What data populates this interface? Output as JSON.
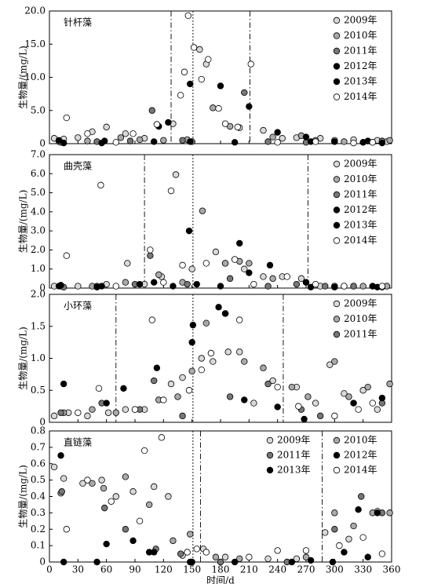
{
  "chart_data": [
    {
      "type": "scatter",
      "title": "针杆藻",
      "ylabel": "生物量/(mg/L)",
      "xlim": [
        0,
        360
      ],
      "xticks": [
        0,
        30,
        60,
        90,
        120,
        150,
        180,
        210,
        240,
        270,
        300,
        330,
        360
      ],
      "ylim": [
        0,
        20
      ],
      "yticks": [
        0,
        {
          "value": 5,
          "label": "5.0"
        },
        {
          "value": 10,
          "label": "10.0"
        },
        {
          "value": 15,
          "label": "15.0"
        },
        {
          "value": 20,
          "label": "20.0"
        }
      ],
      "legend": "upper right",
      "legend_columns": 1,
      "vlines": [
        {
          "x": 128,
          "style": "dash-dot"
        },
        {
          "x": 151,
          "style": "dotted"
        },
        {
          "x": 211,
          "style": "dash-dot"
        }
      ],
      "series": [
        {
          "name": "2009年",
          "color": "#d9d9d9",
          "x": [
            5,
            15,
            30,
            45,
            60,
            80,
            100,
            130,
            158,
            165,
            200,
            225,
            245,
            260,
            285,
            300,
            320,
            345,
            355
          ],
          "values": [
            0.8,
            0.7,
            0.9,
            1.8,
            2.5,
            1.5,
            0.8,
            3.0,
            14.2,
            12.0,
            2.4,
            2.0,
            0.8,
            0.9,
            0.8,
            0.5,
            0.6,
            0.5,
            0.3
          ]
        },
        {
          "name": "2010年",
          "color": "#aaaaaa",
          "x": [
            10,
            40,
            75,
            95,
            120,
            145,
            172,
            190,
            235,
            265,
            280,
            310,
            340,
            358
          ],
          "values": [
            0.3,
            0.4,
            0.9,
            0.6,
            0.5,
            0.6,
            5.4,
            2.6,
            1.0,
            1.2,
            0.5,
            0.3,
            0.2,
            0.5
          ]
        },
        {
          "name": "2011年",
          "color": "#777777",
          "x": [
            12,
            50,
            85,
            108,
            140,
            150,
            205,
            230,
            270,
            300,
            330,
            350
          ],
          "values": [
            0.2,
            0.3,
            0.4,
            5.0,
            0.5,
            0.3,
            7.7,
            0.3,
            0.2,
            0.3,
            0.2,
            0.4
          ]
        },
        {
          "name": "2012年",
          "color": "#000000",
          "x": [
            15,
            58,
            115,
            148,
            180,
            210,
            240,
            275,
            330,
            350
          ],
          "values": [
            0.1,
            0.4,
            2.6,
            0.3,
            8.7,
            5.6,
            1.7,
            0.3,
            0.2,
            0.1
          ]
        },
        {
          "name": "2013年",
          "color": "#000000",
          "x": [
            10,
            55,
            110,
            125,
            148,
            195,
            270,
            300,
            335
          ],
          "values": [
            0.5,
            0.1,
            0.3,
            3.2,
            9.0,
            0.2,
            1.0,
            0.3,
            0.4
          ]
        },
        {
          "name": "2014年",
          "color": "#ffffff",
          "x": [
            18,
            40,
            70,
            88,
            113,
            138,
            142,
            146,
            152,
            160,
            167,
            178,
            185,
            198,
            212,
            240,
            280,
            320,
            340
          ],
          "values": [
            3.9,
            1.5,
            0.2,
            1.5,
            2.9,
            7.3,
            10.8,
            19.3,
            14.5,
            9.7,
            12.7,
            5.3,
            3.0,
            2.5,
            12.0,
            0.2,
            0.3,
            0.1,
            0.2
          ]
        }
      ]
    },
    {
      "type": "scatter",
      "title": "曲壳藻",
      "ylabel": "生物量/(mg/L)",
      "xlim": [
        0,
        360
      ],
      "xticks": [
        0,
        30,
        60,
        90,
        120,
        150,
        180,
        210,
        240,
        270,
        300,
        330,
        360
      ],
      "ylim": [
        0,
        7
      ],
      "yticks": [
        0,
        {
          "value": 1,
          "label": "1.0"
        },
        {
          "value": 2,
          "label": "2.0"
        },
        {
          "value": 3,
          "label": "3.0"
        },
        {
          "value": 4,
          "label": "4.0"
        },
        {
          "value": 5,
          "label": "5.0"
        },
        {
          "value": 6,
          "label": "6.0"
        },
        {
          "value": 7,
          "label": "7.0"
        }
      ],
      "legend": "upper right",
      "legend_columns": 1,
      "vlines": [
        {
          "x": 100,
          "style": "dash-dot"
        },
        {
          "x": 151,
          "style": "dotted"
        },
        {
          "x": 272,
          "style": "dash-dot"
        }
      ],
      "series": [
        {
          "name": "2009年",
          "color": "#d9d9d9",
          "x": [
            5,
            30,
            60,
            82,
            100,
            118,
            133,
            150,
            175,
            185,
            195,
            205,
            225,
            245,
            265,
            285,
            300,
            320,
            340,
            355
          ],
          "values": [
            0.1,
            0.1,
            0.2,
            1.3,
            0.2,
            0.6,
            5.95,
            1.0,
            1.9,
            1.3,
            1.5,
            1.0,
            0.6,
            0.6,
            0.5,
            0.1,
            0.1,
            0.1,
            0.1,
            0.1
          ]
        },
        {
          "name": "2010年",
          "color": "#aaaaaa",
          "x": [
            12,
            45,
            80,
            115,
            140,
            161,
            185,
            200,
            210,
            235,
            270,
            300,
            330,
            355
          ],
          "values": [
            0.1,
            0.1,
            0.3,
            0.7,
            0.3,
            4.05,
            1.3,
            1.4,
            1.3,
            0.5,
            0.3,
            0.1,
            0.1,
            0.1
          ]
        },
        {
          "name": "2011年",
          "color": "#777777",
          "x": [
            15,
            50,
            90,
            106,
            145,
            190,
            230,
            260,
            290,
            320,
            350
          ],
          "values": [
            0.05,
            0.1,
            0.2,
            1.7,
            0.2,
            0.5,
            0.1,
            0.2,
            0.1,
            0.1,
            0.05
          ]
        },
        {
          "name": "2012年",
          "color": "#000000",
          "x": [
            10,
            50,
            95,
            130,
            155,
            200,
            232,
            270,
            300,
            340
          ],
          "values": [
            0.1,
            0.05,
            0.2,
            0.1,
            0.2,
            2.35,
            1.2,
            0.3,
            0.05,
            0.1
          ]
        },
        {
          "name": "2013年",
          "color": "#000000",
          "x": [
            12,
            55,
            110,
            147,
            180,
            210,
            275,
            310,
            345
          ],
          "values": [
            0.15,
            0.1,
            0.3,
            3.0,
            0.1,
            0.8,
            0.05,
            0.1,
            0.05
          ]
        },
        {
          "name": "2014年",
          "color": "#ffffff",
          "x": [
            18,
            54,
            70,
            106,
            120,
            128,
            140,
            165,
            195,
            215,
            250,
            280,
            310,
            350
          ],
          "values": [
            1.7,
            5.4,
            0.1,
            2.0,
            0.3,
            5.1,
            1.2,
            1.3,
            1.5,
            0.2,
            0.6,
            0.2,
            0.1,
            0.1
          ]
        }
      ]
    },
    {
      "type": "scatter",
      "title": "小环藻",
      "ylabel": "生物量/(mg/L)",
      "xlim": [
        0,
        360
      ],
      "xticks": [
        0,
        30,
        60,
        90,
        120,
        150,
        180,
        210,
        240,
        270,
        300,
        330,
        360
      ],
      "ylim": [
        0,
        2
      ],
      "yticks": [
        0,
        0.5,
        {
          "value": 1,
          "label": "1.0"
        },
        1.5,
        {
          "value": 2,
          "label": "2.0"
        }
      ],
      "legend": "upper right",
      "legend_columns": 1,
      "vlines": [
        {
          "x": 70,
          "style": "dash-dot"
        },
        {
          "x": 151,
          "style": "dotted"
        },
        {
          "x": 246,
          "style": "dash-dot"
        }
      ],
      "series": [
        {
          "name": "2009年",
          "color": "#d9d9d9",
          "x": [
            5,
            20,
            40,
            62,
            80,
            100,
            128,
            140,
            160,
            172,
            188,
            200,
            215,
            235,
            260,
            280,
            295,
            310,
            330,
            345
          ],
          "values": [
            0.1,
            0.15,
            0.1,
            0.15,
            0.2,
            0.2,
            0.6,
            0.7,
            1.0,
            0.95,
            1.1,
            1.1,
            0.3,
            0.65,
            0.55,
            0.3,
            0.9,
            0.45,
            0.5,
            0.2
          ]
        },
        {
          "name": "2010年",
          "color": "#aaaaaa",
          "x": [
            15,
            45,
            70,
            90,
            115,
            135,
            150,
            165,
            185,
            205,
            225,
            255,
            272,
            300,
            315,
            335,
            358
          ],
          "values": [
            0.15,
            0.2,
            0.15,
            0.2,
            0.35,
            0.4,
            0.8,
            1.55,
            1.7,
            0.95,
            0.85,
            0.55,
            0.4,
            0.95,
            0.4,
            0.55,
            0.6
          ]
        },
        {
          "name": "2011年",
          "color": "#777777",
          "x": [
            12,
            55,
            95,
            110,
            140,
            190,
            230,
            265,
            285,
            320,
            350
          ],
          "values": [
            0.15,
            0.3,
            0.2,
            0.65,
            0.1,
            0.4,
            0.6,
            0.2,
            0.1,
            0.3,
            0.3
          ]
        },
        {
          "color": "#000000",
          "x": [
            15,
            60,
            78,
            113,
            150,
            151,
            178,
            185,
            205,
            240,
            268,
            320,
            350
          ],
          "values": [
            0.6,
            0.3,
            0.53,
            0.85,
            1.25,
            1.52,
            1.8,
            1.7,
            0.35,
            0.24,
            0.05,
            0.3,
            0.38
          ]
        },
        {
          "color": "#ffffff",
          "x": [
            30,
            52,
            90,
            108,
            120,
            147,
            160,
            170,
            200,
            240,
            262,
            300,
            325,
            340
          ],
          "values": [
            0.15,
            0.53,
            0.2,
            1.6,
            0.35,
            0.5,
            0.82,
            1.08,
            1.6,
            0.55,
            0.25,
            0.1,
            0.2,
            0.3
          ]
        }
      ]
    },
    {
      "type": "scatter",
      "title": "直链藻",
      "ylabel": "生物量/(mg/L)",
      "xlabel": "时间/d",
      "xlim": [
        0,
        360
      ],
      "xticks": [
        0,
        30,
        60,
        90,
        120,
        150,
        180,
        210,
        240,
        270,
        300,
        330,
        360
      ],
      "ylim": [
        0,
        0.8
      ],
      "yticks": [
        0,
        0.1,
        0.2,
        0.3,
        0.4,
        0.5,
        0.6,
        0.7,
        0.8
      ],
      "legend": "upper right",
      "legend_columns": 2,
      "vlines": [
        {
          "x": 151,
          "style": "dotted"
        },
        {
          "x": 159,
          "style": "dash-dot"
        },
        {
          "x": 287,
          "style": "dash-dot"
        }
      ],
      "series": [
        {
          "name": "2009年",
          "color": "#d9d9d9",
          "x": [
            5,
            15,
            35,
            55,
            70,
            88,
            110,
            125,
            140,
            162,
            185,
            230,
            260,
            290,
            315,
            345
          ],
          "values": [
            0.58,
            0.51,
            0.48,
            0.5,
            0.4,
            0.43,
            0.46,
            0.4,
            0.04,
            0.08,
            0.03,
            0.02,
            0.02,
            0.18,
            0.14,
            0.31
          ]
        },
        {
          "name": "2010年",
          "color": "#aaaaaa",
          "x": [
            12,
            45,
            57,
            80,
            105,
            130,
            148,
            175,
            200,
            270,
            300,
            320,
            340,
            358
          ],
          "values": [
            0.42,
            0.48,
            0.45,
            0.52,
            0.35,
            0.13,
            0.17,
            0.03,
            0.02,
            0.03,
            0.3,
            0.22,
            0.3,
            0.3
          ]
        },
        {
          "name": "2011年",
          "color": "#777777",
          "x": [
            13,
            58,
            80,
            112,
            138,
            180,
            250,
            300,
            328,
            350
          ],
          "values": [
            0.43,
            0.33,
            0.2,
            0.08,
            0.05,
            0.0,
            0.0,
            0.2,
            0.4,
            0.3
          ]
        },
        {
          "name": "2012年",
          "color": "#000000",
          "x": [
            12,
            50,
            105,
            150,
            195,
            255,
            298,
            325,
            345
          ],
          "values": [
            0.65,
            0.0,
            0.06,
            0.0,
            0.0,
            0.0,
            0.0,
            0.32,
            0.3
          ]
        },
        {
          "name": "2013年",
          "color": "#000000",
          "x": [
            15,
            60,
            88,
            110,
            148,
            275,
            310,
            335
          ],
          "values": [
            0.0,
            0.11,
            0.13,
            0.06,
            0.0,
            0.01,
            0.06,
            0.03
          ]
        },
        {
          "name": "2014年",
          "color": "#ffffff",
          "x": [
            18,
            40,
            65,
            95,
            100,
            118,
            145,
            155,
            165,
            210,
            240,
            270,
            305,
            330,
            350
          ],
          "values": [
            0.2,
            0.5,
            0.37,
            0.25,
            0.68,
            0.76,
            0.06,
            0.08,
            0.06,
            0.03,
            0.07,
            0.07,
            0.1,
            0.15,
            0.05
          ]
        }
      ]
    }
  ]
}
